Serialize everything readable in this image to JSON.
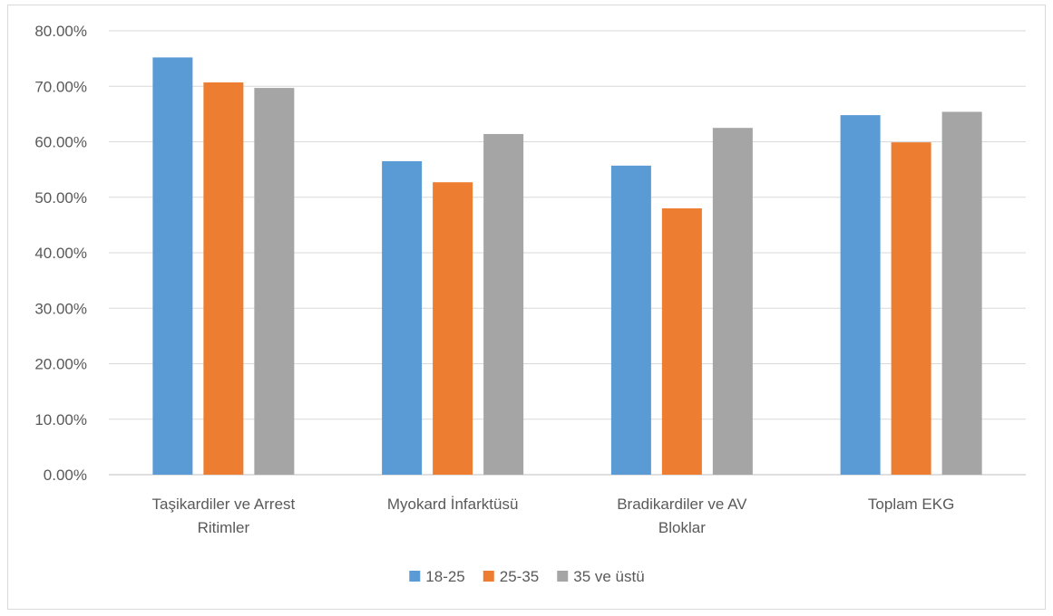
{
  "chart_data": {
    "type": "bar",
    "categories": [
      [
        "Taşikardiler ve Arrest",
        "Ritimler"
      ],
      [
        "Myokard İnfarktüsü"
      ],
      [
        "Bradikardiler ve AV",
        "Bloklar"
      ],
      [
        "Toplam EKG"
      ]
    ],
    "series": [
      {
        "name": "18-25",
        "color": "#5B9BD5",
        "values": [
          75.2,
          56.5,
          55.7,
          64.8
        ]
      },
      {
        "name": "25-35",
        "color": "#ED7D31",
        "values": [
          70.7,
          52.7,
          48.0,
          59.9
        ]
      },
      {
        "name": "35 ve üstü",
        "color": "#A5A5A5",
        "values": [
          69.7,
          61.4,
          62.5,
          65.4
        ]
      }
    ],
    "ylim": [
      0,
      80
    ],
    "yticks": [
      "0.00%",
      "10.00%",
      "20.00%",
      "30.00%",
      "40.00%",
      "50.00%",
      "60.00%",
      "70.00%",
      "80.00%"
    ],
    "grid": true,
    "legend_position": "bottom"
  }
}
